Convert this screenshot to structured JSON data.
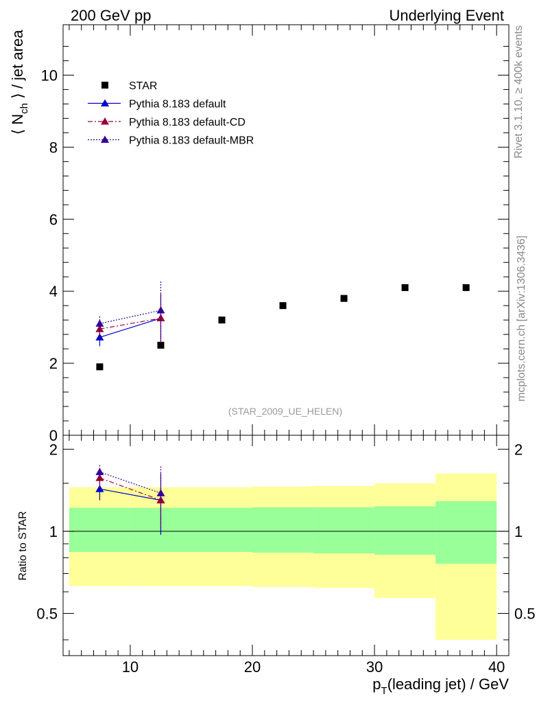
{
  "header": {
    "left_title": "200 GeV pp",
    "right_title": "Underlying Event"
  },
  "side_labels": {
    "rivet": "Rivet 3.1.10, ≥ 400k events",
    "mcplots": "mcplots.cern.ch [arXiv:1306.3436]"
  },
  "analysis_tag": "(STAR_2009_UE_HELEN)",
  "colors": {
    "star": "#000000",
    "pythia_default": "#0000cc",
    "pythia_cd": "#990033",
    "pythia_mbr": "#330099",
    "band_inner": "#99ff99",
    "band_outer": "#ffff99"
  },
  "chart_data": [
    {
      "type": "scatter",
      "name": "main",
      "ylabel_main": "⟨ N",
      "ylabel_sub": "ch",
      "ylabel_rest": " ⟩ / jet area",
      "xlim": [
        4.5,
        41
      ],
      "ylim": [
        0,
        11.4
      ],
      "yticks": [
        0,
        2,
        4,
        6,
        8,
        10
      ],
      "ytick_labels": [
        "0",
        "2",
        "4",
        "6",
        "8",
        "10"
      ],
      "legend_placement": "top-left",
      "series": [
        {
          "name": "STAR",
          "key": "star",
          "marker": "square",
          "x": [
            7.5,
            12.5,
            17.5,
            22.5,
            27.5,
            32.5,
            37.5
          ],
          "y": [
            1.9,
            2.5,
            3.2,
            3.6,
            3.8,
            4.1,
            4.1
          ]
        },
        {
          "name": "Pythia 8.183 default",
          "key": "pythia_default",
          "marker": "triangle",
          "dash": "",
          "x": [
            7.5,
            12.5
          ],
          "y": [
            2.72,
            3.25
          ],
          "err": [
            0.25,
            0.65
          ]
        },
        {
          "name": "Pythia 8.183 default-CD",
          "key": "pythia_cd",
          "marker": "triangle",
          "dash": "7 3 2 3",
          "x": [
            7.5,
            12.5
          ],
          "y": [
            2.95,
            3.25
          ],
          "err": [
            0.25,
            0.7
          ]
        },
        {
          "name": "Pythia 8.183 default-MBR",
          "key": "pythia_mbr",
          "marker": "triangle",
          "dash": "2 2",
          "x": [
            7.5,
            12.5
          ],
          "y": [
            3.1,
            3.47
          ],
          "err": [
            0.2,
            0.8
          ]
        }
      ]
    },
    {
      "type": "scatter",
      "name": "ratio",
      "ylabel": "Ratio to STAR",
      "xlabel_main": "p",
      "xlabel_sub": "T",
      "xlabel_rest": "(leading jet) / GeV",
      "xlim": [
        4.5,
        41
      ],
      "ylim": [
        0.35,
        2.25
      ],
      "ylog": true,
      "yticks": [
        0.5,
        1,
        2
      ],
      "ytick_labels": [
        "0.5",
        "1",
        "2"
      ],
      "xticks": [
        10,
        20,
        30,
        40
      ],
      "xtick_labels": [
        "10",
        "20",
        "30",
        "40"
      ],
      "bands": {
        "x_edges": [
          5,
          10,
          15,
          20,
          25,
          30,
          35,
          40
        ],
        "inner_low": [
          0.84,
          0.84,
          0.84,
          0.835,
          0.83,
          0.82,
          0.76
        ],
        "inner_high": [
          1.22,
          1.22,
          1.22,
          1.225,
          1.225,
          1.235,
          1.29
        ],
        "outer_low": [
          0.63,
          0.63,
          0.63,
          0.625,
          0.62,
          0.57,
          0.4
        ],
        "outer_high": [
          1.45,
          1.45,
          1.45,
          1.46,
          1.465,
          1.5,
          1.63
        ]
      },
      "series": [
        {
          "name": "Pythia 8.183 default",
          "key": "pythia_default",
          "dash": "",
          "x": [
            7.5,
            12.5
          ],
          "y": [
            1.43,
            1.3
          ],
          "err": [
            0.13,
            0.33
          ]
        },
        {
          "name": "Pythia 8.183 default-CD",
          "key": "pythia_cd",
          "dash": "7 3 2 3",
          "x": [
            7.5,
            12.5
          ],
          "y": [
            1.57,
            1.3
          ],
          "err": [
            0.13,
            0.28
          ]
        },
        {
          "name": "Pythia 8.183 default-MBR",
          "key": "pythia_mbr",
          "dash": "2 2",
          "x": [
            7.5,
            12.5
          ],
          "y": [
            1.65,
            1.38
          ],
          "err": [
            0.1,
            0.35
          ]
        }
      ]
    }
  ]
}
